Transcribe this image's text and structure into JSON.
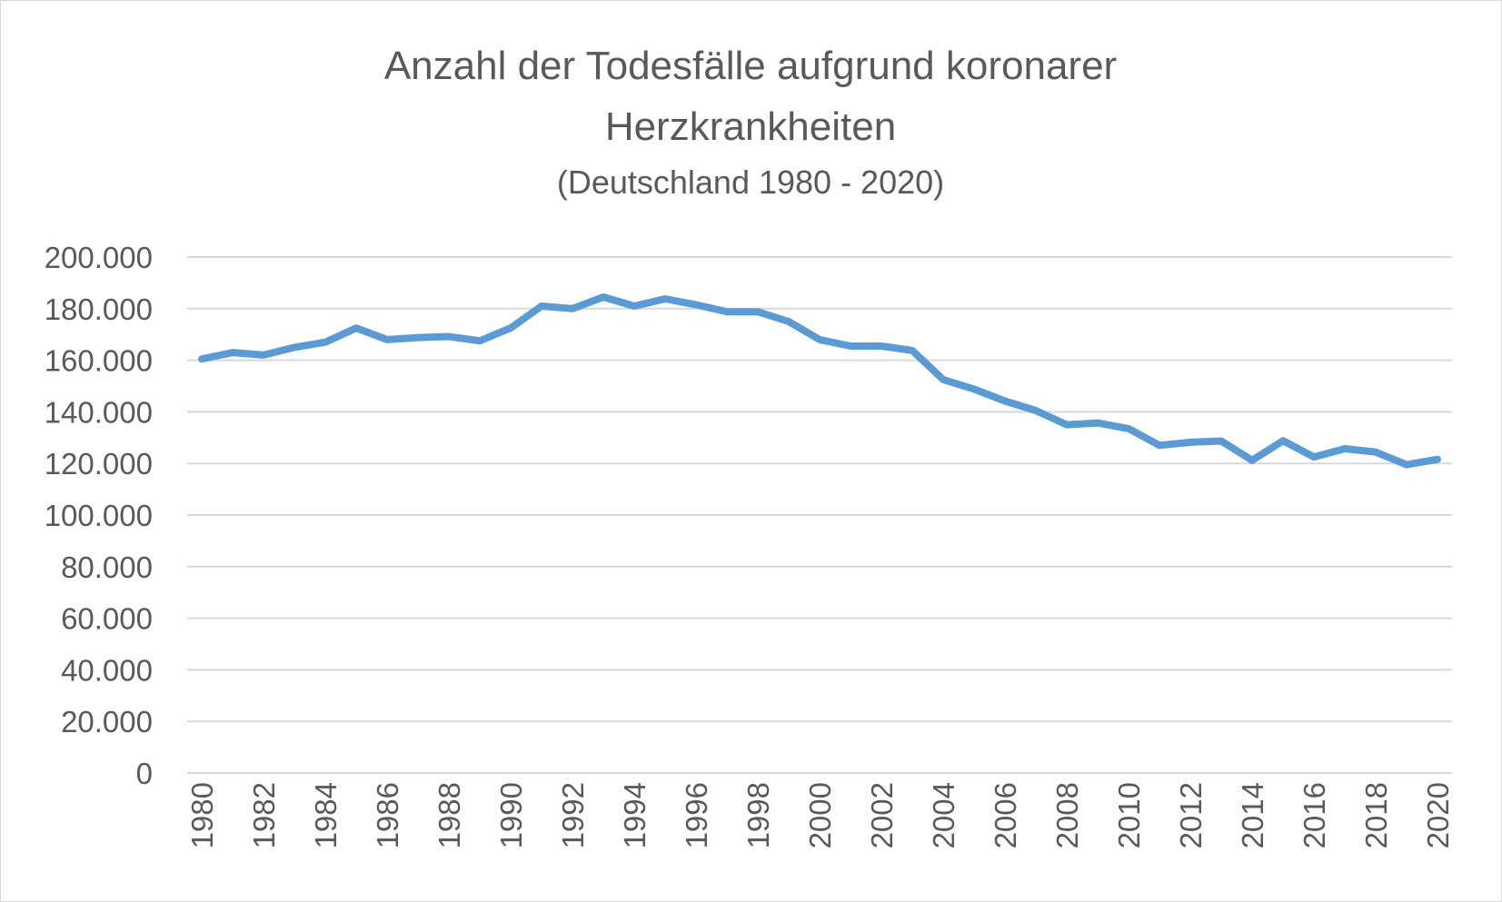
{
  "chart_data": {
    "type": "line",
    "title": "Anzahl der Todesfälle aufgrund koronarer",
    "title_line2": "Herzkrankheiten",
    "subtitle": "(Deutschland 1980 - 2020)",
    "xlabel": "",
    "ylabel": "",
    "ylim": [
      0,
      200000
    ],
    "y_ticks": [
      0,
      20000,
      40000,
      60000,
      80000,
      100000,
      120000,
      140000,
      160000,
      180000,
      200000
    ],
    "y_tick_labels": [
      "0",
      "20.000",
      "40.000",
      "60.000",
      "80.000",
      "100.000",
      "120.000",
      "140.000",
      "160.000",
      "180.000",
      "200.000"
    ],
    "x_tick_labels": [
      "1980",
      "1982",
      "1984",
      "1986",
      "1988",
      "1990",
      "1992",
      "1994",
      "1996",
      "1998",
      "2000",
      "2002",
      "2004",
      "2006",
      "2008",
      "2010",
      "2012",
      "2014",
      "2016",
      "2018",
      "2020"
    ],
    "x": [
      1980,
      1981,
      1982,
      1983,
      1984,
      1985,
      1986,
      1987,
      1988,
      1989,
      1990,
      1991,
      1992,
      1993,
      1994,
      1995,
      1996,
      1997,
      1998,
      1999,
      2000,
      2001,
      2002,
      2003,
      2004,
      2005,
      2006,
      2007,
      2008,
      2009,
      2010,
      2011,
      2012,
      2013,
      2014,
      2015,
      2016,
      2017,
      2018,
      2019,
      2020
    ],
    "series": [
      {
        "values": [
          160500,
          163000,
          162000,
          165000,
          167000,
          172500,
          168000,
          168800,
          169200,
          167500,
          172500,
          181000,
          180000,
          184500,
          181000,
          183800,
          181500,
          178800,
          178800,
          175000,
          168000,
          165500,
          165500,
          163800,
          152500,
          148800,
          144200,
          140500,
          135000,
          135700,
          133500,
          127000,
          128200,
          128700,
          121200,
          128800,
          122500,
          125700,
          124400,
          119500,
          121600
        ]
      }
    ],
    "grid": true,
    "legend": "none",
    "colors": {
      "line": "#5b9bd5",
      "grid": "#d9d9d9",
      "text": "#595959"
    }
  }
}
